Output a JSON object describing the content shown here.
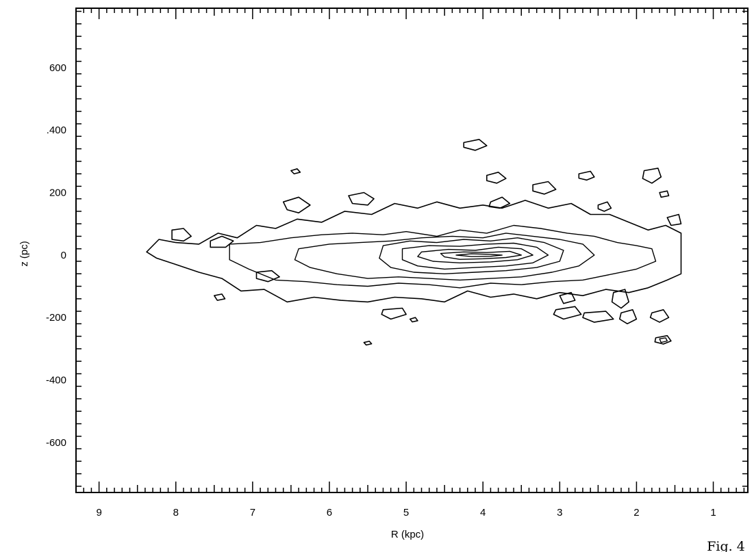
{
  "chart_data": {
    "type": "contour",
    "xlabel": "R (kpc)",
    "ylabel": "z (pc)",
    "xlim": [
      9.3,
      0.55
    ],
    "ylim": [
      -760,
      790
    ],
    "x_direction": "reversed",
    "grid": false,
    "x_ticks": [
      9,
      8,
      7,
      6,
      5,
      4,
      3,
      2,
      1
    ],
    "x_tick_labels": [
      "9",
      "8",
      "7",
      "6",
      "5",
      "4",
      "3",
      "2",
      "1"
    ],
    "y_ticks": [
      600,
      400,
      200,
      0,
      -200,
      -400,
      -600
    ],
    "y_tick_labels": [
      "600",
      ".400",
      "200",
      "0",
      "-200",
      "-400",
      "-600"
    ],
    "figure_label": "Fig. 4",
    "contours": [
      {
        "level": 1,
        "points": [
          [
            8.38,
            10
          ],
          [
            8.22,
            50
          ],
          [
            8.0,
            40
          ],
          [
            7.7,
            35
          ],
          [
            7.45,
            70
          ],
          [
            7.2,
            55
          ],
          [
            6.95,
            95
          ],
          [
            6.7,
            85
          ],
          [
            6.42,
            115
          ],
          [
            6.1,
            105
          ],
          [
            5.8,
            140
          ],
          [
            5.45,
            130
          ],
          [
            5.15,
            165
          ],
          [
            4.85,
            150
          ],
          [
            4.6,
            170
          ],
          [
            4.3,
            150
          ],
          [
            4.0,
            160
          ],
          [
            3.75,
            150
          ],
          [
            3.45,
            175
          ],
          [
            3.15,
            150
          ],
          [
            2.85,
            165
          ],
          [
            2.6,
            130
          ],
          [
            2.35,
            130
          ],
          [
            2.1,
            105
          ],
          [
            1.85,
            80
          ],
          [
            1.62,
            95
          ],
          [
            1.42,
            70
          ],
          [
            1.42,
            -60
          ],
          [
            1.6,
            -80
          ],
          [
            1.85,
            -105
          ],
          [
            2.1,
            -120
          ],
          [
            2.4,
            -110
          ],
          [
            2.7,
            -130
          ],
          [
            3.0,
            -120
          ],
          [
            3.3,
            -140
          ],
          [
            3.6,
            -125
          ],
          [
            3.9,
            -135
          ],
          [
            4.2,
            -115
          ],
          [
            4.5,
            -150
          ],
          [
            4.8,
            -140
          ],
          [
            5.15,
            -135
          ],
          [
            5.5,
            -150
          ],
          [
            5.85,
            -145
          ],
          [
            6.2,
            -135
          ],
          [
            6.55,
            -150
          ],
          [
            6.85,
            -110
          ],
          [
            7.15,
            -115
          ],
          [
            7.4,
            -75
          ],
          [
            7.7,
            -55
          ],
          [
            8.0,
            -30
          ],
          [
            8.25,
            -10
          ]
        ]
      },
      {
        "level": 2,
        "points": [
          [
            7.3,
            35
          ],
          [
            6.9,
            40
          ],
          [
            6.5,
            55
          ],
          [
            6.1,
            65
          ],
          [
            5.7,
            70
          ],
          [
            5.3,
            65
          ],
          [
            5.0,
            75
          ],
          [
            4.6,
            60
          ],
          [
            4.3,
            80
          ],
          [
            3.95,
            70
          ],
          [
            3.6,
            95
          ],
          [
            3.25,
            85
          ],
          [
            2.9,
            70
          ],
          [
            2.55,
            60
          ],
          [
            2.25,
            40
          ],
          [
            2.0,
            30
          ],
          [
            1.8,
            20
          ],
          [
            1.75,
            -20
          ],
          [
            2.0,
            -45
          ],
          [
            2.3,
            -60
          ],
          [
            2.7,
            -80
          ],
          [
            3.1,
            -85
          ],
          [
            3.5,
            -95
          ],
          [
            3.9,
            -90
          ],
          [
            4.3,
            -105
          ],
          [
            4.7,
            -95
          ],
          [
            5.1,
            -90
          ],
          [
            5.5,
            -100
          ],
          [
            5.9,
            -95
          ],
          [
            6.3,
            -85
          ],
          [
            6.7,
            -80
          ],
          [
            7.05,
            -45
          ],
          [
            7.3,
            -15
          ]
        ]
      },
      {
        "level": 3,
        "points": [
          [
            6.4,
            20
          ],
          [
            6.0,
            35
          ],
          [
            5.6,
            40
          ],
          [
            5.2,
            45
          ],
          [
            4.8,
            55
          ],
          [
            4.4,
            60
          ],
          [
            4.0,
            55
          ],
          [
            3.7,
            70
          ],
          [
            3.35,
            60
          ],
          [
            3.0,
            50
          ],
          [
            2.7,
            35
          ],
          [
            2.55,
            0
          ],
          [
            2.75,
            -35
          ],
          [
            3.1,
            -55
          ],
          [
            3.5,
            -70
          ],
          [
            3.9,
            -75
          ],
          [
            4.3,
            -80
          ],
          [
            4.7,
            -75
          ],
          [
            5.1,
            -70
          ],
          [
            5.5,
            -75
          ],
          [
            5.9,
            -60
          ],
          [
            6.25,
            -40
          ],
          [
            6.45,
            -15
          ]
        ]
      },
      {
        "level": 4,
        "points": [
          [
            5.3,
            30
          ],
          [
            4.95,
            45
          ],
          [
            4.6,
            40
          ],
          [
            4.25,
            50
          ],
          [
            3.9,
            45
          ],
          [
            3.55,
            55
          ],
          [
            3.2,
            40
          ],
          [
            2.95,
            15
          ],
          [
            3.0,
            -20
          ],
          [
            3.3,
            -40
          ],
          [
            3.7,
            -50
          ],
          [
            4.1,
            -55
          ],
          [
            4.5,
            -60
          ],
          [
            4.9,
            -55
          ],
          [
            5.2,
            -40
          ],
          [
            5.35,
            -10
          ]
        ]
      },
      {
        "level": 5,
        "points": [
          [
            5.05,
            20
          ],
          [
            4.7,
            30
          ],
          [
            4.3,
            28
          ],
          [
            3.95,
            35
          ],
          [
            3.6,
            38
          ],
          [
            3.3,
            25
          ],
          [
            3.15,
            0
          ],
          [
            3.35,
            -25
          ],
          [
            3.7,
            -35
          ],
          [
            4.1,
            -40
          ],
          [
            4.5,
            -45
          ],
          [
            4.85,
            -35
          ],
          [
            5.05,
            -15
          ]
        ]
      },
      {
        "level": 6,
        "points": [
          [
            4.8,
            10
          ],
          [
            4.45,
            18
          ],
          [
            4.1,
            15
          ],
          [
            3.8,
            25
          ],
          [
            3.5,
            20
          ],
          [
            3.35,
            0
          ],
          [
            3.55,
            -15
          ],
          [
            3.9,
            -22
          ],
          [
            4.3,
            -25
          ],
          [
            4.65,
            -20
          ],
          [
            4.85,
            -5
          ]
        ]
      },
      {
        "level": 7,
        "points": [
          [
            4.55,
            5
          ],
          [
            4.25,
            10
          ],
          [
            3.95,
            8
          ],
          [
            3.65,
            12
          ],
          [
            3.5,
            0
          ],
          [
            3.7,
            -8
          ],
          [
            4.0,
            -12
          ],
          [
            4.3,
            -14
          ],
          [
            4.5,
            -6
          ]
        ]
      },
      {
        "level": 8,
        "points": [
          [
            4.35,
            0
          ],
          [
            4.15,
            4
          ],
          [
            3.9,
            2
          ],
          [
            3.75,
            0
          ],
          [
            3.9,
            -4
          ],
          [
            4.15,
            -5
          ]
        ]
      },
      {
        "level": 1,
        "points": [
          [
            8.05,
            80
          ],
          [
            7.9,
            85
          ],
          [
            7.8,
            60
          ],
          [
            7.9,
            45
          ],
          [
            8.05,
            50
          ]
        ]
      },
      {
        "level": 1,
        "points": [
          [
            7.55,
            45
          ],
          [
            7.4,
            60
          ],
          [
            7.25,
            45
          ],
          [
            7.35,
            25
          ],
          [
            7.55,
            25
          ]
        ]
      },
      {
        "level": 1,
        "points": [
          [
            6.95,
            -55
          ],
          [
            6.75,
            -50
          ],
          [
            6.65,
            -70
          ],
          [
            6.8,
            -85
          ],
          [
            6.95,
            -75
          ]
        ]
      },
      {
        "level": 1,
        "points": [
          [
            5.75,
            190
          ],
          [
            5.55,
            200
          ],
          [
            5.42,
            180
          ],
          [
            5.5,
            160
          ],
          [
            5.7,
            165
          ]
        ]
      },
      {
        "level": 1,
        "points": [
          [
            6.6,
            170
          ],
          [
            6.4,
            185
          ],
          [
            6.25,
            160
          ],
          [
            6.4,
            135
          ],
          [
            6.55,
            145
          ]
        ]
      },
      {
        "level": 1,
        "points": [
          [
            4.25,
            360
          ],
          [
            4.05,
            370
          ],
          [
            3.95,
            350
          ],
          [
            4.1,
            335
          ],
          [
            4.25,
            345
          ]
        ]
      },
      {
        "level": 1,
        "points": [
          [
            3.95,
            255
          ],
          [
            3.8,
            265
          ],
          [
            3.7,
            245
          ],
          [
            3.82,
            230
          ],
          [
            3.95,
            238
          ]
        ]
      },
      {
        "level": 1,
        "points": [
          [
            3.35,
            225
          ],
          [
            3.15,
            235
          ],
          [
            3.05,
            210
          ],
          [
            3.2,
            195
          ],
          [
            3.35,
            205
          ]
        ]
      },
      {
        "level": 1,
        "points": [
          [
            2.75,
            260
          ],
          [
            2.6,
            268
          ],
          [
            2.55,
            250
          ],
          [
            2.65,
            240
          ],
          [
            2.75,
            246
          ]
        ]
      },
      {
        "level": 1,
        "points": [
          [
            2.5,
            160
          ],
          [
            2.38,
            170
          ],
          [
            2.33,
            150
          ],
          [
            2.42,
            140
          ],
          [
            2.5,
            148
          ]
        ]
      },
      {
        "level": 1,
        "points": [
          [
            3.9,
            170
          ],
          [
            3.75,
            185
          ],
          [
            3.65,
            165
          ],
          [
            3.78,
            150
          ],
          [
            3.92,
            155
          ]
        ]
      },
      {
        "level": 1,
        "points": [
          [
            5.3,
            -175
          ],
          [
            5.05,
            -170
          ],
          [
            5.0,
            -190
          ],
          [
            5.2,
            -205
          ],
          [
            5.32,
            -190
          ]
        ]
      },
      {
        "level": 1,
        "points": [
          [
            3.05,
            -175
          ],
          [
            2.8,
            -165
          ],
          [
            2.72,
            -190
          ],
          [
            2.95,
            -205
          ],
          [
            3.08,
            -190
          ]
        ]
      },
      {
        "level": 1,
        "points": [
          [
            2.68,
            -185
          ],
          [
            2.4,
            -180
          ],
          [
            2.3,
            -205
          ],
          [
            2.55,
            -215
          ],
          [
            2.7,
            -200
          ]
        ]
      },
      {
        "level": 1,
        "points": [
          [
            2.3,
            -120
          ],
          [
            2.15,
            -110
          ],
          [
            2.1,
            -150
          ],
          [
            2.2,
            -170
          ],
          [
            2.32,
            -150
          ]
        ]
      },
      {
        "level": 1,
        "points": [
          [
            2.2,
            -185
          ],
          [
            2.05,
            -175
          ],
          [
            2.0,
            -205
          ],
          [
            2.12,
            -220
          ],
          [
            2.22,
            -205
          ]
        ]
      },
      {
        "level": 1,
        "points": [
          [
            1.75,
            -265
          ],
          [
            1.6,
            -258
          ],
          [
            1.55,
            -275
          ],
          [
            1.65,
            -285
          ],
          [
            1.76,
            -278
          ]
        ]
      },
      {
        "level": 2,
        "points": [
          [
            1.7,
            -268
          ],
          [
            1.62,
            -265
          ],
          [
            1.6,
            -275
          ],
          [
            1.68,
            -280
          ]
        ]
      },
      {
        "level": 1,
        "points": [
          [
            1.8,
            -185
          ],
          [
            1.65,
            -175
          ],
          [
            1.58,
            -200
          ],
          [
            1.7,
            -215
          ],
          [
            1.82,
            -200
          ]
        ]
      },
      {
        "level": 1,
        "points": [
          [
            7.5,
            -130
          ],
          [
            7.4,
            -125
          ],
          [
            7.36,
            -140
          ],
          [
            7.46,
            -145
          ]
        ]
      },
      {
        "level": 1,
        "points": [
          [
            5.55,
            -280
          ],
          [
            5.48,
            -276
          ],
          [
            5.45,
            -284
          ],
          [
            5.52,
            -288
          ]
        ]
      },
      {
        "level": 1,
        "points": [
          [
            4.95,
            -205
          ],
          [
            4.88,
            -200
          ],
          [
            4.85,
            -210
          ],
          [
            4.92,
            -214
          ]
        ]
      },
      {
        "level": 1,
        "points": [
          [
            6.5,
            270
          ],
          [
            6.42,
            276
          ],
          [
            6.38,
            265
          ],
          [
            6.46,
            260
          ]
        ]
      },
      {
        "level": 1,
        "points": [
          [
            1.9,
            270
          ],
          [
            1.72,
            278
          ],
          [
            1.68,
            250
          ],
          [
            1.8,
            230
          ],
          [
            1.92,
            245
          ]
        ]
      },
      {
        "level": 1,
        "points": [
          [
            1.7,
            200
          ],
          [
            1.6,
            205
          ],
          [
            1.58,
            190
          ],
          [
            1.68,
            185
          ]
        ]
      },
      {
        "level": 1,
        "points": [
          [
            3.0,
            -130
          ],
          [
            2.85,
            -120
          ],
          [
            2.8,
            -145
          ],
          [
            2.95,
            -155
          ]
        ]
      },
      {
        "level": 1,
        "points": [
          [
            1.6,
            120
          ],
          [
            1.45,
            130
          ],
          [
            1.42,
            100
          ],
          [
            1.55,
            95
          ]
        ]
      }
    ]
  }
}
